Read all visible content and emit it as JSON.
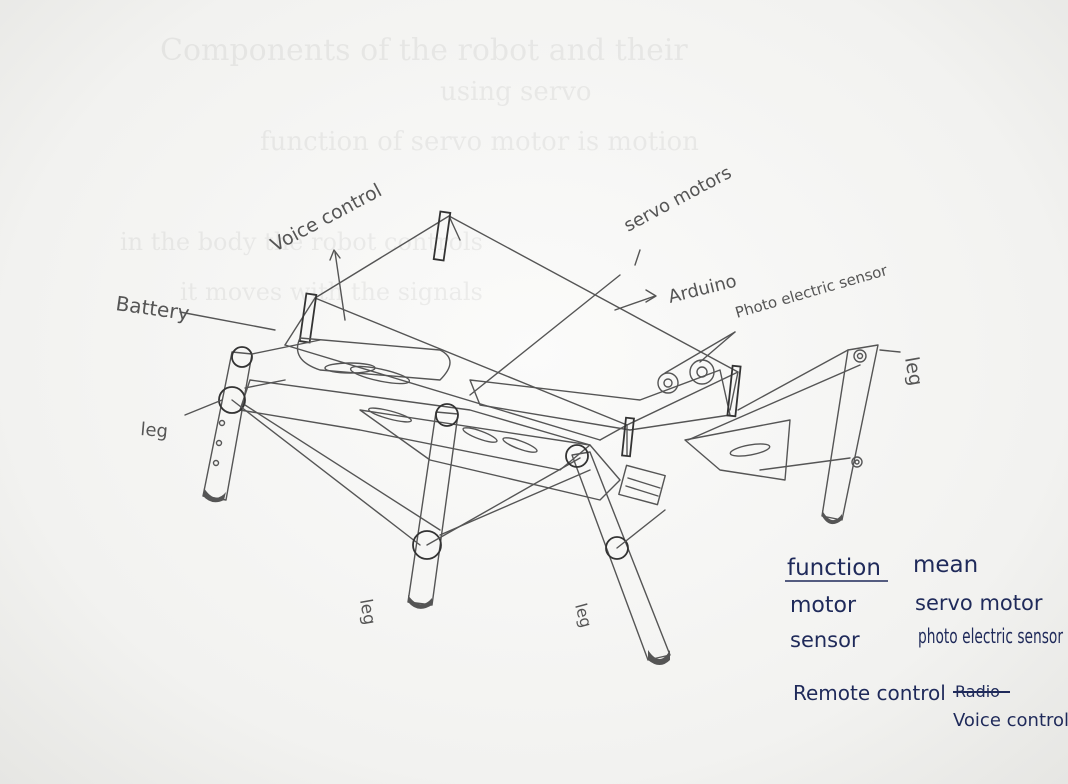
{
  "annotations": {
    "voice_control": "Voice control",
    "battery": "Battery",
    "servo_motors": "servo motors",
    "arduino": "Arduino",
    "photo_electric_sensor": "Photo electric sensor",
    "leg_front_left": "leg",
    "leg_bottom_left": "leg",
    "leg_bottom_center": "leg",
    "leg_right": "leg"
  },
  "legend": {
    "headers": [
      "function",
      "mean"
    ],
    "rows": [
      {
        "function": "motor",
        "mean": "servo motor"
      },
      {
        "function": "sensor",
        "mean": "photo electric sensor"
      },
      {
        "function": "Remote control",
        "mean_struck": "Radio",
        "mean": "Voice control"
      }
    ]
  },
  "colors": {
    "pencil": "#555555",
    "ink": "#1f2a5a",
    "paper": "#f4f4f2"
  }
}
